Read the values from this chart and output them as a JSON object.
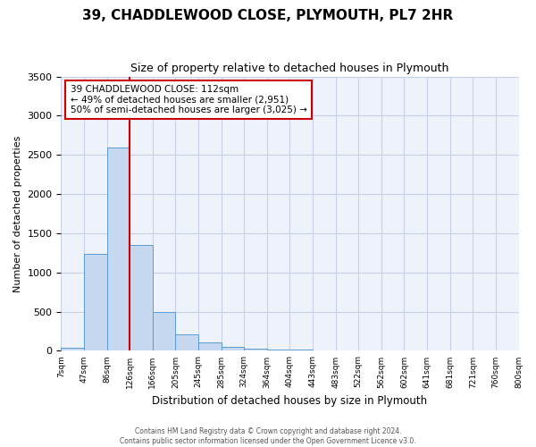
{
  "title": "39, CHADDLEWOOD CLOSE, PLYMOUTH, PL7 2HR",
  "subtitle": "Size of property relative to detached houses in Plymouth",
  "xlabel": "Distribution of detached houses by size in Plymouth",
  "ylabel": "Number of detached properties",
  "bar_color": "#c5d8f0",
  "bar_edge_color": "#5b9bd5",
  "bg_color": "#eef2fb",
  "grid_color": "#c8d0e8",
  "annotation_box_color": "#cc0000",
  "vline_color": "#cc0000",
  "bin_labels": [
    "7sqm",
    "47sqm",
    "86sqm",
    "126sqm",
    "166sqm",
    "205sqm",
    "245sqm",
    "285sqm",
    "324sqm",
    "364sqm",
    "404sqm",
    "443sqm",
    "483sqm",
    "522sqm",
    "562sqm",
    "602sqm",
    "641sqm",
    "681sqm",
    "721sqm",
    "760sqm",
    "800sqm"
  ],
  "bar_heights": [
    40,
    1240,
    2590,
    1350,
    500,
    205,
    110,
    50,
    30,
    20,
    15,
    10,
    5,
    0,
    0,
    0,
    0,
    0,
    0,
    0
  ],
  "ylim": [
    0,
    3500
  ],
  "yticks": [
    0,
    500,
    1000,
    1500,
    2000,
    2500,
    3000,
    3500
  ],
  "vline_x": 3,
  "annotation_title": "39 CHADDLEWOOD CLOSE: 112sqm",
  "annotation_line2": "← 49% of detached houses are smaller (2,951)",
  "annotation_line3": "50% of semi-detached houses are larger (3,025) →",
  "footer_line1": "Contains HM Land Registry data © Crown copyright and database right 2024.",
  "footer_line2": "Contains public sector information licensed under the Open Government Licence v3.0."
}
